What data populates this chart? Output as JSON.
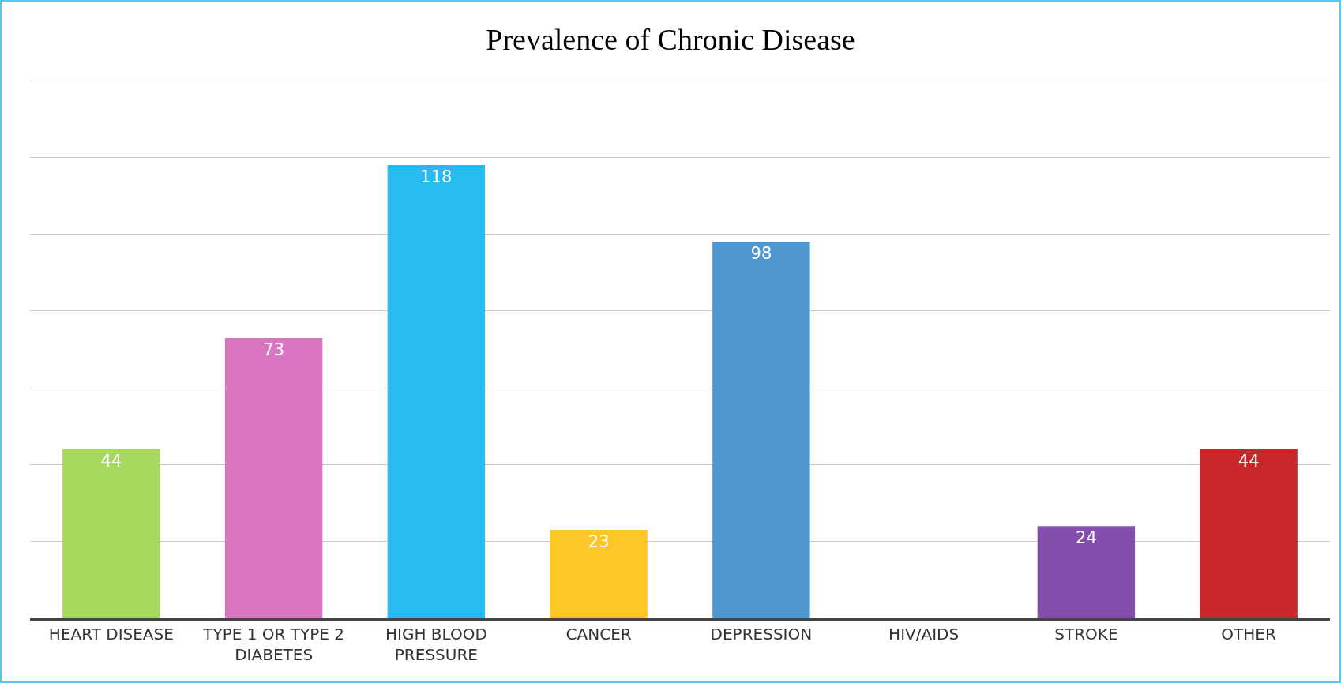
{
  "chart_data": {
    "type": "bar",
    "title": "Prevalence of Chronic Disease",
    "categories": [
      "HEART DISEASE",
      "TYPE 1 OR TYPE 2 DIABETES",
      "HIGH BLOOD PRESSURE",
      "CANCER",
      "DEPRESSION",
      "HIV/AIDS",
      "STROKE",
      "OTHER"
    ],
    "values": [
      44,
      73,
      118,
      23,
      98,
      null,
      24,
      44
    ],
    "colors": [
      "#a8d95f",
      "#da75c4",
      "#27bbf0",
      "#fec626",
      "#4f97d1",
      "#808080",
      "#844ead",
      "#c9282a"
    ],
    "value_labels": [
      "44",
      "73",
      "118",
      "23",
      "98",
      null,
      "24",
      "44"
    ],
    "ylim": [
      0,
      140
    ],
    "yticks": [
      {
        "value": 0,
        "label": null
      },
      {
        "value": 20,
        "label": null
      },
      {
        "value": 40,
        "label": null
      },
      {
        "value": 60,
        "label": null
      },
      {
        "value": 80,
        "label": null
      },
      {
        "value": 100,
        "label": null
      },
      {
        "value": 120,
        "label": null
      },
      {
        "value": 140,
        "label": null
      }
    ],
    "tick_labels": "x",
    "grid": "y"
  }
}
